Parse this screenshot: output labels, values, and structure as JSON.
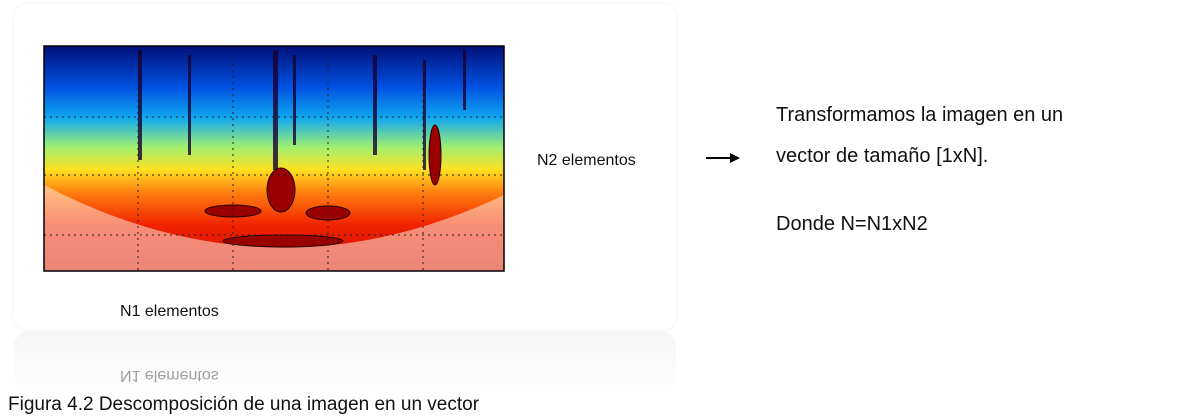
{
  "figure": {
    "n2_label": "N2 elementos",
    "n1_label": "N1 elementos"
  },
  "text": {
    "lines": [
      "Transformamos la imagen en un",
      "vector de tamaño [1xN]."
    ],
    "formula": "Donde N=N1xN2"
  },
  "caption": "Figura 4.2 Descomposición de una imagen en un vector"
}
